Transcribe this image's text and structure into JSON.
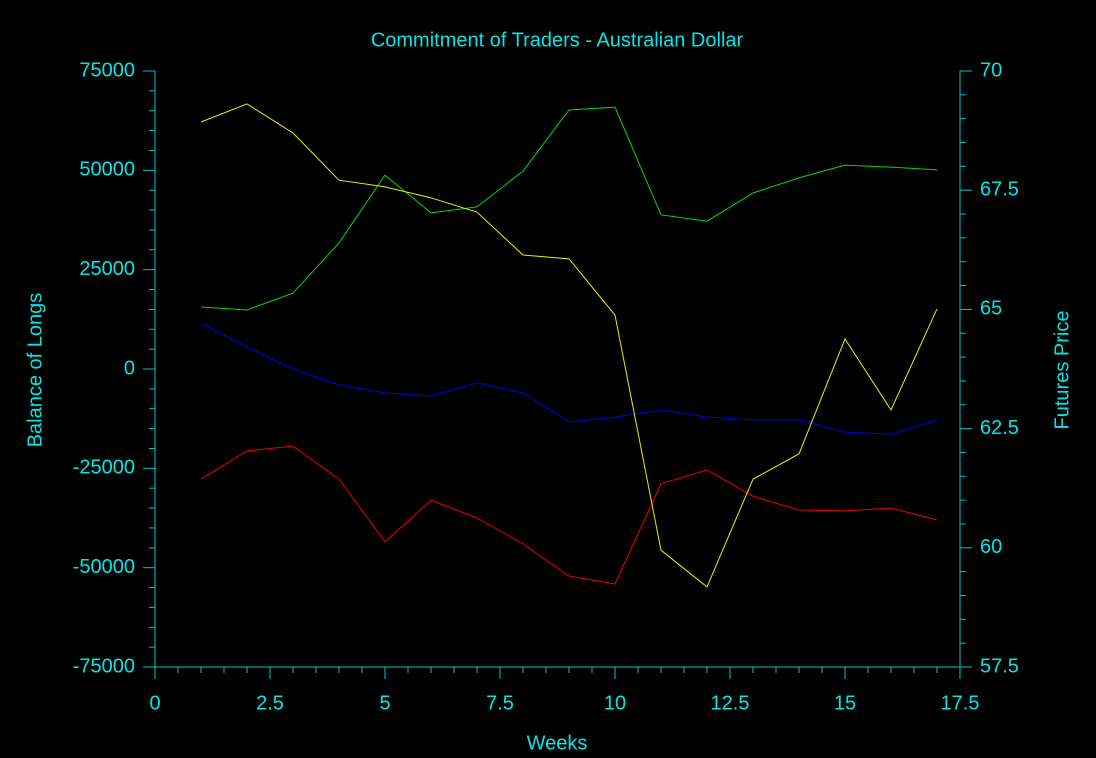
{
  "chart_data": {
    "type": "line",
    "title": "Commitment of Traders - Australian Dollar",
    "x_label": "Weeks",
    "y_label": "Balance of Longs",
    "y2_label": "Futures Price",
    "x": [
      1,
      2,
      3,
      4,
      5,
      6,
      7,
      8,
      9,
      10,
      11,
      12,
      13,
      14,
      15,
      16,
      17
    ],
    "series": [
      {
        "color": "#00dd00",
        "values": [
          15600,
          14850,
          19100,
          31700,
          48800,
          39300,
          40800,
          49800,
          65200,
          65900,
          38800,
          37200,
          44300,
          48100,
          51300,
          50800,
          50100
        ]
      },
      {
        "color": "#0000ee",
        "values": [
          11600,
          5500,
          0,
          -4000,
          -6000,
          -6800,
          -3500,
          -6000,
          -13300,
          -12100,
          -10300,
          -12100,
          -12800,
          -12800,
          -15900,
          -16400,
          -12800
        ]
      },
      {
        "color": "#ee0000",
        "values": [
          -27700,
          -20600,
          -19400,
          -27700,
          -43500,
          -33000,
          -37500,
          -44000,
          -52100,
          -54100,
          -28900,
          -25400,
          -32000,
          -35500,
          -35700,
          -35000,
          -38000
        ]
      },
      {
        "color": "#eeee00",
        "axis": "y2",
        "values": [
          68.93,
          69.31,
          68.7,
          67.71,
          67.57,
          67.34,
          67.04,
          66.14,
          66.06,
          64.88,
          59.95,
          59.18,
          61.44,
          61.97,
          64.38,
          62.89,
          65.01
        ]
      }
    ],
    "xlim": [
      0,
      17.5
    ],
    "xticks": [
      0,
      2.5,
      5,
      7.5,
      10,
      12.5,
      15,
      17.5
    ],
    "ylim": [
      -75000,
      75000
    ],
    "yticks": [
      -75000,
      -50000,
      -25000,
      0,
      25000,
      50000,
      75000
    ],
    "y2lim": [
      57.5,
      70
    ],
    "y2ticks": [
      57.5,
      60,
      62.5,
      65,
      67.5,
      70
    ],
    "grid": false
  }
}
